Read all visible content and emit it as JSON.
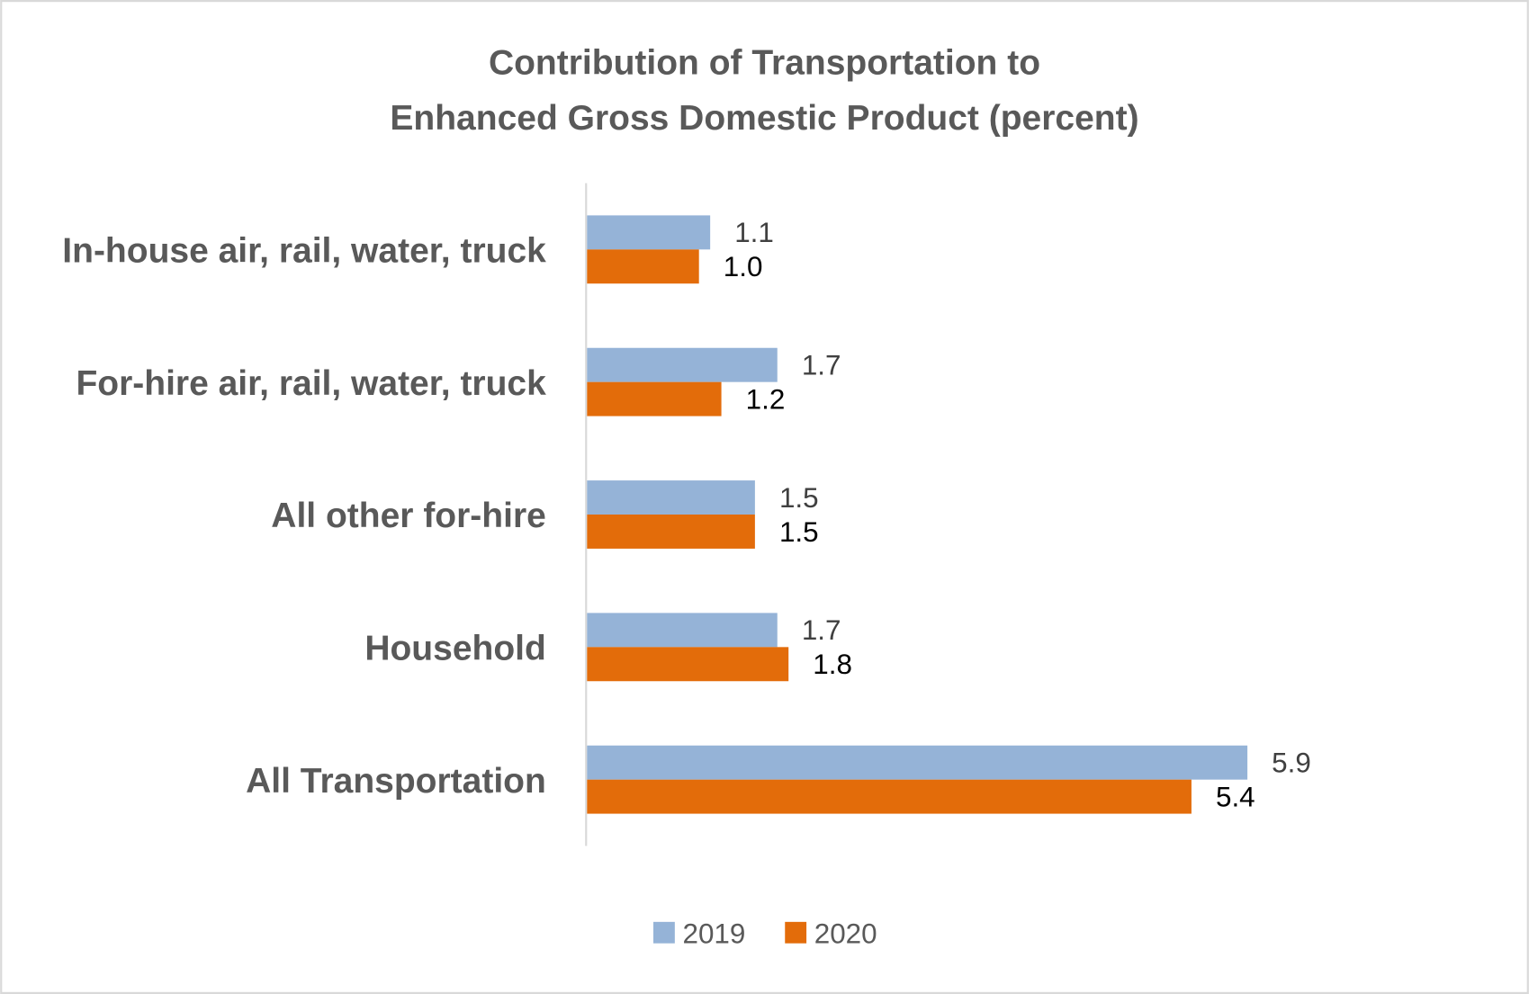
{
  "chart_data": {
    "type": "bar",
    "orientation": "horizontal",
    "title": "Contribution of Transportation to Enhanced Gross Domestic Product (percent)",
    "title_lines": [
      "Contribution of Transportation to",
      "Enhanced Gross Domestic Product (percent)"
    ],
    "categories": [
      "In-house air, rail, water, truck",
      "For-hire air, rail, water, truck",
      "All other for-hire",
      "Household",
      "All Transportation"
    ],
    "series": [
      {
        "name": "2019",
        "color": "#95B3D7",
        "values": [
          1.1,
          1.7,
          1.5,
          1.7,
          5.9
        ],
        "labels": [
          "1.1",
          "1.7",
          "1.5",
          "1.7",
          "5.9"
        ]
      },
      {
        "name": "2020",
        "color": "#E36C0A",
        "values": [
          1.0,
          1.2,
          1.5,
          1.8,
          5.4
        ],
        "labels": [
          "1.0",
          "1.2",
          "1.5",
          "1.8",
          "5.4"
        ]
      }
    ],
    "xlim": [
      0,
      6
    ],
    "grid": false,
    "value_axis_visible": false,
    "data_labels": true,
    "legend": "bottom",
    "xlabel": "",
    "ylabel": ""
  }
}
